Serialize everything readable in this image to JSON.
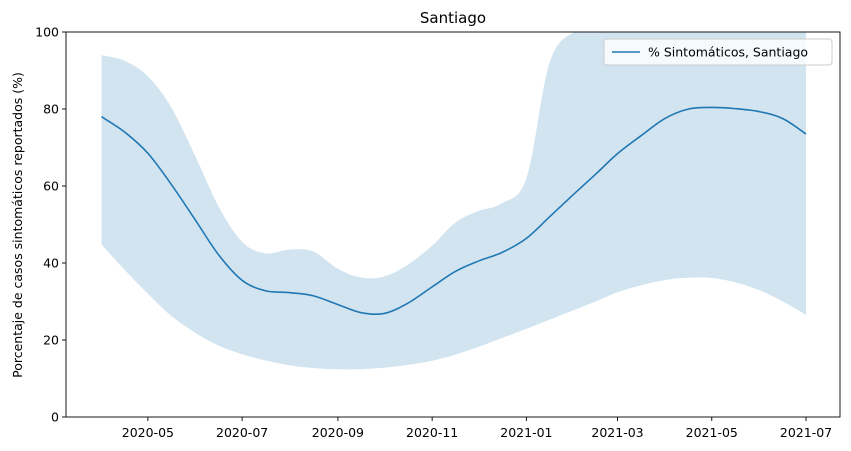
{
  "chart_data": {
    "type": "line",
    "title": "Santiago",
    "xlabel": "",
    "ylabel": "Porcentaje de casos sintomáticos reportados (%)",
    "ylim": [
      0,
      100
    ],
    "xlim": [
      "2020-03-09",
      "2021-07-23"
    ],
    "yticks": [
      0,
      20,
      40,
      60,
      80,
      100
    ],
    "xticks": [
      "2020-05-01",
      "2020-07-01",
      "2020-09-01",
      "2020-11-01",
      "2021-01-01",
      "2021-03-01",
      "2021-05-01",
      "2021-07-01"
    ],
    "xtick_labels": [
      "2020-05",
      "2020-07",
      "2020-09",
      "2020-11",
      "2021-01",
      "2021-03",
      "2021-05",
      "2021-07"
    ],
    "legend_position": "top-right",
    "grid": false,
    "series": [
      {
        "name": "% Sintomáticos, Santiago",
        "color": "#1f77b4",
        "band_color": "#1f77b4",
        "band_opacity": 0.2,
        "x": [
          "2020-04-01",
          "2020-04-16",
          "2020-05-01",
          "2020-05-16",
          "2020-06-01",
          "2020-06-16",
          "2020-07-01",
          "2020-07-16",
          "2020-08-01",
          "2020-08-16",
          "2020-09-01",
          "2020-09-16",
          "2020-10-01",
          "2020-10-16",
          "2020-11-01",
          "2020-11-16",
          "2020-12-01",
          "2020-12-16",
          "2021-01-01",
          "2021-01-16",
          "2021-02-01",
          "2021-02-16",
          "2021-03-01",
          "2021-03-16",
          "2021-04-01",
          "2021-04-16",
          "2021-05-01",
          "2021-05-16",
          "2021-06-01",
          "2021-06-16",
          "2021-07-01"
        ],
        "y": [
          78,
          74,
          68.5,
          60.5,
          51,
          42,
          35.5,
          32.8,
          32.3,
          31.5,
          29.2,
          27.1,
          26.9,
          29.5,
          33.8,
          37.8,
          40.5,
          42.7,
          46.4,
          52,
          58,
          63.5,
          68.4,
          73,
          77.6,
          80,
          80.4,
          80.1,
          79.3,
          77.5,
          73.5
        ],
        "lower": [
          44.8,
          38.2,
          32,
          26.3,
          21.8,
          18.5,
          16.3,
          14.7,
          13.4,
          12.7,
          12.4,
          12.4,
          12.8,
          13.5,
          14.6,
          16.2,
          18.2,
          20.5,
          22.9,
          25.3,
          27.8,
          30.2,
          32.4,
          34.2,
          35.6,
          36.2,
          36.1,
          35,
          32.9,
          30,
          26.5
        ],
        "upper": [
          94,
          92.5,
          88.5,
          80.5,
          67.5,
          54.5,
          45.5,
          42.5,
          43.5,
          43,
          38.5,
          36.2,
          36.5,
          39.5,
          44.5,
          50.5,
          53.5,
          55.5,
          62,
          92,
          100,
          100,
          100,
          100,
          100,
          100,
          100,
          100,
          100,
          100,
          100
        ]
      }
    ]
  }
}
